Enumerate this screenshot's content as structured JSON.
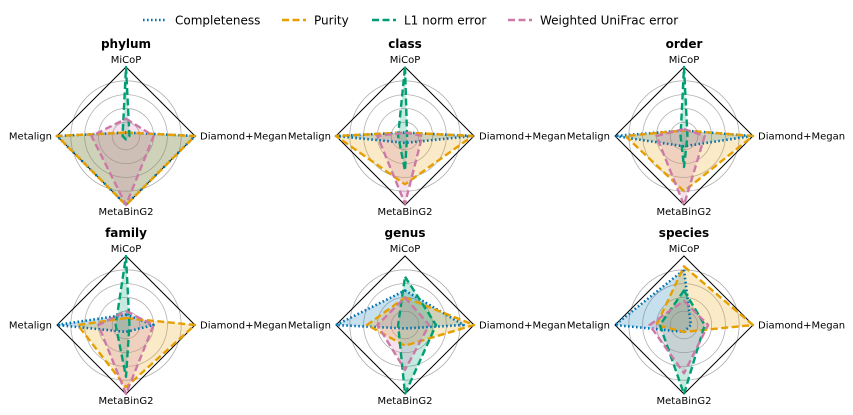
{
  "chart_data": {
    "type": "radar",
    "axes": [
      "MiCoP",
      "Diamond+Megan",
      "MetaBinG2",
      "Metalign"
    ],
    "rlim": [
      0,
      1
    ],
    "grid": true,
    "legend_placement": "top-center",
    "series": [
      {
        "name": "Completeness",
        "color": "#0072b2",
        "dash": "dotted"
      },
      {
        "name": "Purity",
        "color": "#e69f00",
        "dash": "dashed"
      },
      {
        "name": "L1 norm error",
        "color": "#009e73",
        "dash": "dashed"
      },
      {
        "name": "Weighted UniFrac error",
        "color": "#cc79a7",
        "dash": "dashed"
      }
    ],
    "panels": [
      {
        "title": "phylum",
        "values": [
          [
            0.05,
            1.0,
            1.0,
            1.0
          ],
          [
            0.05,
            1.0,
            1.0,
            1.0
          ],
          [
            1.0,
            0.05,
            0.05,
            0.05
          ],
          [
            0.25,
            0.4,
            1.0,
            0.5
          ]
        ]
      },
      {
        "title": "class",
        "values": [
          [
            0.05,
            0.98,
            0.1,
            1.0
          ],
          [
            0.05,
            0.98,
            0.7,
            1.0
          ],
          [
            1.0,
            0.03,
            0.5,
            0.1
          ],
          [
            0.05,
            0.25,
            0.98,
            0.4
          ]
        ]
      },
      {
        "title": "order",
        "values": [
          [
            0.08,
            0.98,
            0.15,
            1.0
          ],
          [
            0.08,
            1.0,
            0.8,
            0.85
          ],
          [
            1.0,
            0.05,
            0.45,
            0.05
          ],
          [
            0.1,
            0.3,
            1.0,
            0.4
          ]
        ]
      },
      {
        "title": "family",
        "values": [
          [
            0.15,
            0.4,
            0.1,
            1.0
          ],
          [
            0.1,
            1.0,
            0.9,
            0.7
          ],
          [
            1.0,
            0.05,
            0.75,
            0.15
          ],
          [
            0.2,
            0.4,
            1.0,
            0.4
          ]
        ]
      },
      {
        "title": "genus",
        "values": [
          [
            0.5,
            0.85,
            0.05,
            1.0
          ],
          [
            0.4,
            1.0,
            0.3,
            0.55
          ],
          [
            0.7,
            0.45,
            1.0,
            0.1
          ],
          [
            0.4,
            0.35,
            0.65,
            0.4
          ]
        ]
      },
      {
        "title": "species",
        "values": [
          [
            0.8,
            0.1,
            0.1,
            1.0
          ],
          [
            0.85,
            1.0,
            0.1,
            0.4
          ],
          [
            0.5,
            0.3,
            1.0,
            0.35
          ],
          [
            0.35,
            0.35,
            0.7,
            0.5
          ]
        ]
      }
    ]
  }
}
